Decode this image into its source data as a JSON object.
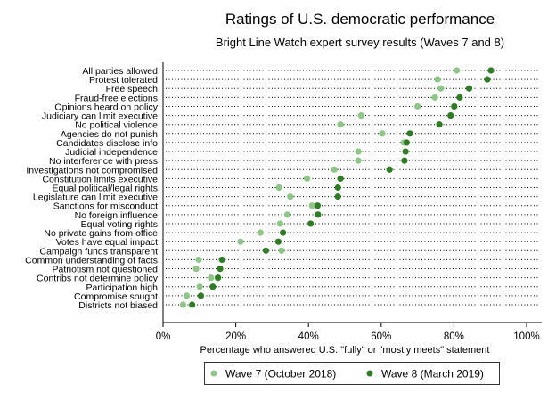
{
  "chart_data": {
    "type": "scatter",
    "title": "Ratings of U.S. democratic performance",
    "subtitle": "Bright Line Watch expert survey results (Waves 7 and 8)",
    "xlabel": "Percentage who answered U.S. \"fully\" or \"mostly meets\" statement",
    "ylabel": "",
    "xlim": [
      0,
      100
    ],
    "xticks": [
      "0%",
      "20%",
      "40%",
      "60%",
      "80%",
      "100%"
    ],
    "xtick_values": [
      0,
      20,
      40,
      60,
      80,
      100
    ],
    "grid": "dotted horizontal lines per category",
    "legend_placement": "bottom",
    "categories": [
      "All parties allowed",
      "Protest tolerated",
      "Free speech",
      "Fraud-free elections",
      "Opinions heard on policy",
      "Judiciary can limit executive",
      "No political violence",
      "Agencies do not punish",
      "Candidates disclose info",
      "Judicial independence",
      "No interference with press",
      "Investigations not compromised",
      "Constitution limits executive",
      "Equal political/legal rights",
      "Legislature can limit executive",
      "Sanctions for misconduct",
      "No foreign influence",
      "Equal voting rights",
      "No private gains from office",
      "Votes have equal impact",
      "Campaign funds transparent",
      "Common understanding of facts",
      "Patriotism not questioned",
      "Contribs not determine policy",
      "Participation high",
      "Compromise sought",
      "Districts not biased"
    ],
    "series": [
      {
        "name": "Wave 7 (October 2018)",
        "color": "#8cc785",
        "values": [
          80.8,
          75.5,
          76.4,
          74.8,
          70.0,
          54.5,
          48.8,
          60.3,
          66.2,
          53.7,
          53.7,
          47.1,
          39.6,
          31.9,
          35.0,
          41.0,
          34.2,
          32.2,
          26.8,
          21.3,
          32.6,
          9.8,
          9.1,
          13.2,
          10.1,
          6.5,
          5.5
        ]
      },
      {
        "name": "Wave 8 (March 2019)",
        "color": "#2d7d22",
        "values": [
          90.2,
          89.2,
          84.2,
          81.6,
          80.1,
          79.1,
          76.0,
          67.9,
          67.0,
          66.7,
          66.4,
          62.3,
          48.8,
          48.1,
          48.1,
          42.5,
          42.6,
          40.6,
          33.0,
          31.7,
          28.3,
          16.2,
          15.7,
          15.1,
          13.7,
          10.4,
          8.0
        ]
      }
    ]
  }
}
